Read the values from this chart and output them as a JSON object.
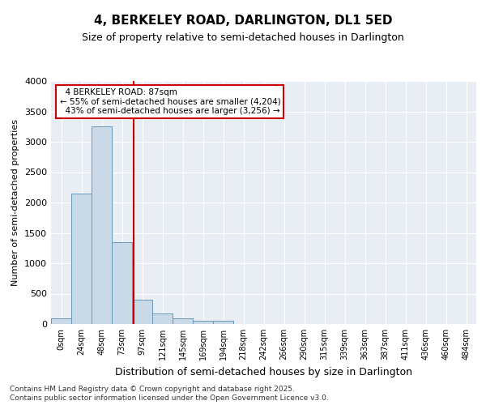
{
  "title": "4, BERKELEY ROAD, DARLINGTON, DL1 5ED",
  "subtitle": "Size of property relative to semi-detached houses in Darlington",
  "xlabel": "Distribution of semi-detached houses by size in Darlington",
  "ylabel": "Number of semi-detached properties",
  "bin_labels": [
    "0sqm",
    "24sqm",
    "48sqm",
    "73sqm",
    "97sqm",
    "121sqm",
    "145sqm",
    "169sqm",
    "194sqm",
    "218sqm",
    "242sqm",
    "266sqm",
    "290sqm",
    "315sqm",
    "339sqm",
    "363sqm",
    "387sqm",
    "411sqm",
    "436sqm",
    "460sqm",
    "484sqm"
  ],
  "bar_values": [
    100,
    2150,
    3250,
    1350,
    400,
    170,
    100,
    60,
    50,
    0,
    0,
    0,
    0,
    0,
    0,
    0,
    0,
    0,
    0,
    0,
    0
  ],
  "bar_color": "#c9d9e8",
  "bar_edge_color": "#6699bb",
  "property_label": "4 BERKELEY ROAD: 87sqm",
  "pct_smaller": 55,
  "count_smaller": 4204,
  "pct_larger": 43,
  "count_larger": 3256,
  "vline_color": "#cc0000",
  "annotation_box_color": "#cc0000",
  "ylim": [
    0,
    4000
  ],
  "yticks": [
    0,
    500,
    1000,
    1500,
    2000,
    2500,
    3000,
    3500,
    4000
  ],
  "bg_color": "#e8eef4",
  "footer_line1": "Contains HM Land Registry data © Crown copyright and database right 2025.",
  "footer_line2": "Contains public sector information licensed under the Open Government Licence v3.0."
}
